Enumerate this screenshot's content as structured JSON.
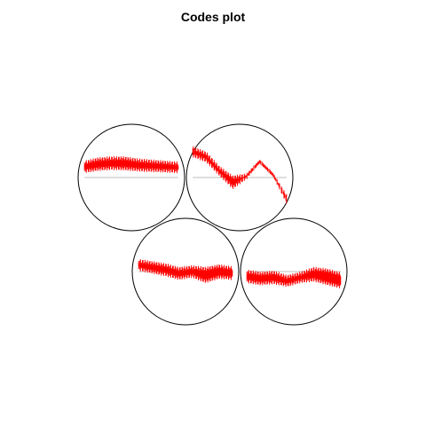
{
  "chart_data": {
    "type": "codes",
    "title": "Codes plot",
    "grid": false,
    "colors": {
      "codes": "#ff0000",
      "circle": "#000000",
      "baseline": "#bdbdbd"
    },
    "units": [
      {
        "amp_min": [
          0.12,
          0.16,
          0.18,
          0.17,
          0.15,
          0.14,
          0.13,
          0.12
        ],
        "amp_max": [
          0.28,
          0.34,
          0.36,
          0.36,
          0.32,
          0.3,
          0.28,
          0.26
        ]
      },
      {
        "amp_min": [
          0.55,
          0.45,
          0.18,
          0.0,
          0.04,
          0.3,
          0.05,
          -0.35
        ],
        "amp_max": [
          0.42,
          0.32,
          0.06,
          -0.18,
          0.0,
          0.3,
          0.05,
          -0.45
        ]
      },
      {
        "amp_min": [
          0.05,
          0.0,
          -0.05,
          -0.12,
          -0.08,
          -0.18,
          -0.1,
          -0.12
        ],
        "amp_max": [
          0.2,
          0.16,
          0.12,
          0.05,
          0.08,
          0.05,
          0.1,
          0.06
        ]
      },
      {
        "amp_min": [
          -0.18,
          -0.22,
          -0.2,
          -0.25,
          -0.18,
          -0.15,
          -0.22,
          -0.28
        ],
        "amp_max": [
          0.0,
          -0.04,
          -0.02,
          -0.1,
          -0.04,
          0.05,
          0.02,
          -0.05
        ]
      }
    ]
  }
}
